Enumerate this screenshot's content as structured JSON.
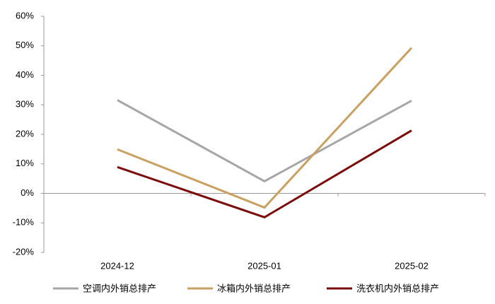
{
  "chart_data": {
    "type": "line",
    "categories": [
      "2024-12",
      "2025-01",
      "2025-02"
    ],
    "series": [
      {
        "name": "空调内外销总排产",
        "color": "#a6a6a6",
        "values": [
          31.6,
          4.1,
          31.4
        ]
      },
      {
        "name": "冰箱内外销总排产",
        "color": "#c9a060",
        "values": [
          14.9,
          -4.8,
          49.3
        ]
      },
      {
        "name": "洗衣机内外销总排产",
        "color": "#7b0c0c",
        "values": [
          8.9,
          -8.1,
          21.3
        ]
      }
    ],
    "ylim": [
      -20,
      60
    ],
    "yticks": [
      {
        "value": -20,
        "label": "-20%"
      },
      {
        "value": -10,
        "label": "-10%"
      },
      {
        "value": 0,
        "label": "0%"
      },
      {
        "value": 10,
        "label": "10%"
      },
      {
        "value": 20,
        "label": "20%"
      },
      {
        "value": 30,
        "label": "30%"
      },
      {
        "value": 40,
        "label": "40%"
      },
      {
        "value": 50,
        "label": "50%"
      },
      {
        "value": 60,
        "label": "60%"
      }
    ],
    "legend": "bottom"
  }
}
